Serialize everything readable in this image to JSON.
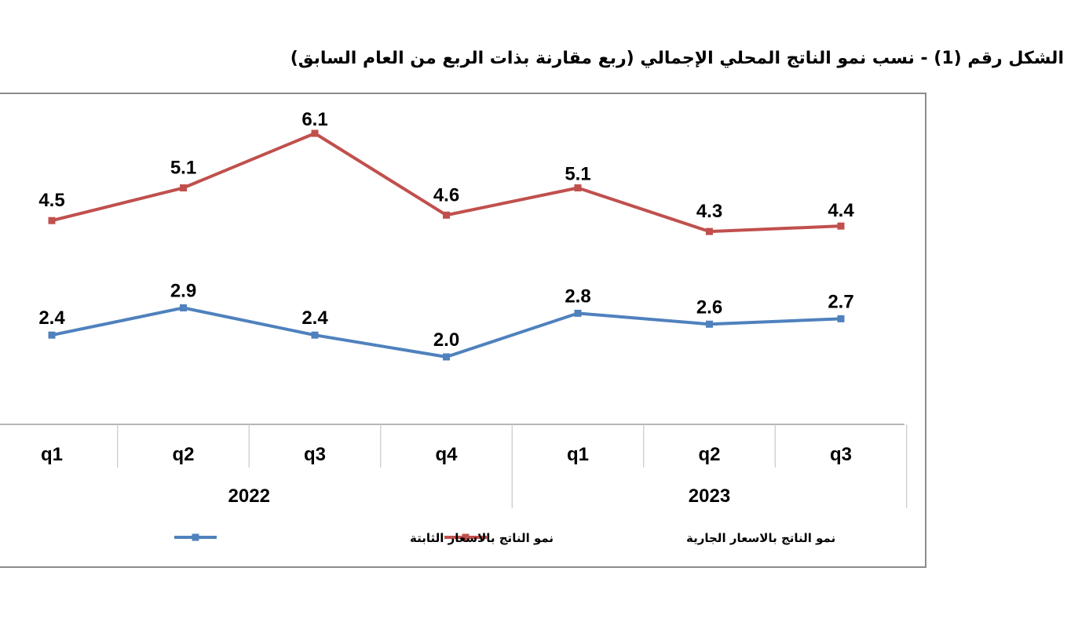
{
  "chart_data": {
    "type": "line",
    "title": "الشكل رقم (1) - نسب نمو الناتج المحلي الإجمالي (ربع مقارنة بذات الربع من العام السابق)",
    "categories": [
      "q1",
      "q2",
      "q3",
      "q4",
      "q1",
      "q2",
      "q3"
    ],
    "groups": [
      {
        "label": "2022",
        "span": [
          0,
          3
        ]
      },
      {
        "label": "2023",
        "span": [
          4,
          6
        ]
      }
    ],
    "series": [
      {
        "name": "نمو الناتج بالاسعار الجارية",
        "color": "#c0504d",
        "values": [
          4.5,
          5.1,
          6.1,
          4.6,
          5.1,
          4.3,
          4.4
        ],
        "labels": [
          "4.5",
          "5.1",
          "6.1",
          "4.6",
          "5.1",
          "4.3",
          "4.4"
        ]
      },
      {
        "name": "نمو الناتج بالاسعار الثابتة",
        "color": "#4f81bd",
        "values": [
          2.4,
          2.9,
          2.4,
          2.0,
          2.8,
          2.6,
          2.7
        ],
        "labels": [
          "2.4",
          "2.9",
          "2.4",
          "2.0",
          "2.8",
          "2.6",
          "2.7"
        ]
      }
    ],
    "legend_position": "bottom",
    "grid": false
  }
}
